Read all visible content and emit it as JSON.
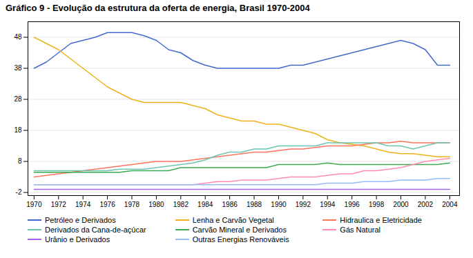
{
  "chart_data": {
    "type": "line",
    "title": "Gráfico 9 - Evolução da estrutura da oferta de energia, Brasil 1970-2004",
    "x": [
      1970,
      1971,
      1972,
      1973,
      1974,
      1975,
      1976,
      1977,
      1978,
      1979,
      1980,
      1981,
      1982,
      1983,
      1984,
      1985,
      1986,
      1987,
      1988,
      1989,
      1990,
      1991,
      1992,
      1993,
      1994,
      1995,
      1996,
      1997,
      1998,
      1999,
      2000,
      2001,
      2002,
      2003,
      2004
    ],
    "series": [
      {
        "name": "Petróleo e Derivados",
        "values": [
          38,
          40,
          43,
          46,
          47,
          48,
          49.5,
          49.5,
          49.5,
          48.5,
          47,
          44,
          43,
          40.5,
          39,
          38,
          38,
          38,
          38,
          38,
          38,
          39,
          39,
          40,
          41,
          42,
          43,
          44,
          45,
          46,
          47,
          46,
          44,
          39,
          39
        ]
      },
      {
        "name": "Lenha e Carvão Vegetal",
        "values": [
          48,
          46,
          44,
          41,
          38,
          35,
          32,
          30,
          28,
          27,
          27,
          27,
          27,
          26,
          25,
          23,
          22,
          21,
          21,
          20,
          20,
          19,
          18,
          17,
          15,
          14,
          13.5,
          13,
          12,
          11,
          10.5,
          10.5,
          10,
          9.5,
          9.5
        ]
      },
      {
        "name": "Hidraulica e Eletricidade",
        "values": [
          3,
          3.5,
          4,
          4.5,
          5,
          5.5,
          6,
          6.5,
          7,
          7.5,
          8,
          8,
          8,
          8.5,
          9,
          9.5,
          10,
          10.5,
          11,
          11,
          11.5,
          12,
          12,
          12.5,
          13,
          13,
          13,
          13.5,
          14,
          14,
          14.5,
          14,
          14,
          14,
          14
        ]
      },
      {
        "name": "Derivados da Cana-de-açúcar",
        "values": [
          5,
          5,
          5,
          5,
          5,
          5,
          5,
          5.5,
          5.5,
          5.5,
          6,
          6.5,
          7,
          7.5,
          8.5,
          10,
          11,
          11,
          12,
          12,
          13,
          13,
          13,
          13,
          14,
          14,
          14,
          14,
          14,
          13,
          13,
          12,
          13,
          14,
          14
        ]
      },
      {
        "name": "Carvão Mineral e Derivados",
        "values": [
          4.5,
          4.5,
          4.5,
          4.5,
          4.5,
          4.5,
          4.5,
          4.5,
          5,
          5,
          5,
          5,
          6,
          6,
          6,
          6,
          6,
          6,
          6,
          6,
          7,
          7,
          7,
          7,
          7.5,
          7,
          7,
          7,
          7,
          7,
          7,
          7,
          7,
          7,
          7.5
        ]
      },
      {
        "name": "Gás Natural",
        "values": [
          0.5,
          0.5,
          0.5,
          0.5,
          0.5,
          0.5,
          0.5,
          0.5,
          0.5,
          0.5,
          0.5,
          0.5,
          0.5,
          0.5,
          1,
          1.5,
          1.5,
          2,
          2,
          2,
          2.5,
          3,
          3,
          3,
          3.5,
          4,
          4,
          5,
          5,
          5.5,
          6,
          7,
          8,
          8.5,
          9
        ]
      },
      {
        "name": "Urânio e Derivados",
        "values": [
          -1,
          -1,
          -1,
          -1,
          -1,
          -1,
          -1,
          -1,
          -1,
          -1,
          -1,
          -1,
          -1,
          -1,
          -1,
          -1,
          -1,
          -1,
          -1,
          -1,
          -1,
          -1,
          -1,
          -1,
          -1,
          -1,
          -1,
          -1,
          -1,
          -1,
          -1,
          -1,
          -1,
          -1,
          -1
        ]
      },
      {
        "name": "Outras Energias Renováveis",
        "values": [
          0.5,
          0.5,
          0.5,
          0.5,
          0.5,
          0.5,
          0.5,
          0.5,
          0.5,
          0.5,
          0.5,
          0.5,
          0.5,
          0.5,
          0.5,
          0.5,
          0.5,
          0.5,
          0.5,
          0.5,
          0.5,
          0.5,
          0.5,
          0.5,
          1,
          1,
          1,
          1.5,
          1.5,
          1.5,
          2,
          2,
          2,
          2.5,
          2.5
        ]
      }
    ],
    "xlim": [
      1969.5,
      2004.8
    ],
    "xticks": [
      1970,
      1972,
      1974,
      1976,
      1978,
      1980,
      1982,
      1984,
      1986,
      1988,
      1990,
      1992,
      1994,
      1996,
      1998,
      2000,
      2002,
      2004
    ],
    "ylim": [
      -3,
      53
    ],
    "yticks": [
      -2,
      8,
      18,
      28,
      38,
      48
    ],
    "grid": true,
    "legend": "bottom"
  }
}
